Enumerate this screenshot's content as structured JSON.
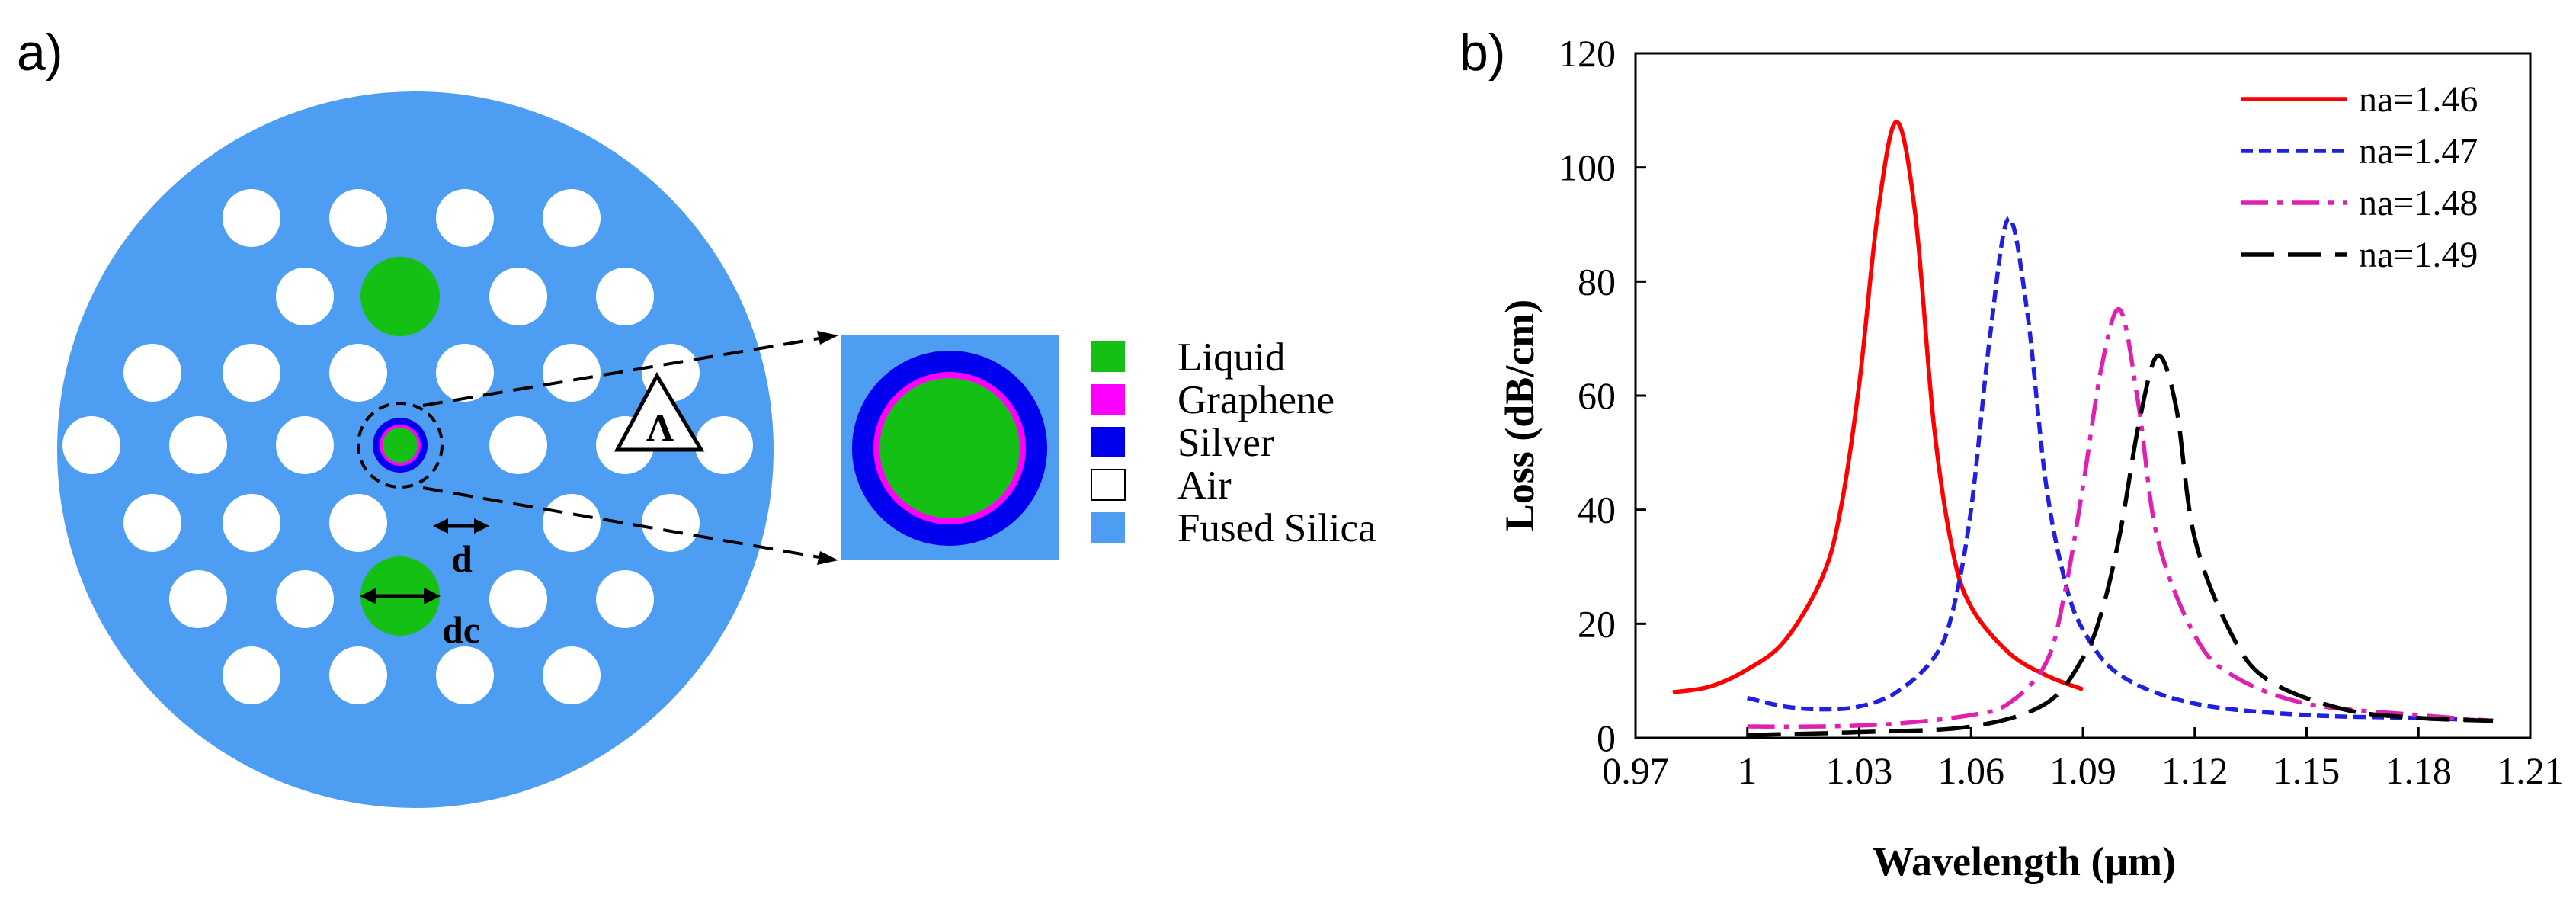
{
  "colors": {
    "fused_silica": "#4d9df2",
    "liquid": "#13c013",
    "graphene": "#ff00ff",
    "silver": "#0000ee",
    "air": "#ffffff"
  },
  "panel_a": {
    "label": "a)",
    "dim_d": "d",
    "dim_dc": "dc",
    "lambda": "Λ",
    "legend": [
      {
        "label": "Liquid",
        "color": "#13c013"
      },
      {
        "label": "Graphene",
        "color": "#ff00ff"
      },
      {
        "label": "Silver",
        "color": "#0000ee"
      },
      {
        "label": "Air",
        "color": "#ffffff"
      },
      {
        "label": "Fused Silica",
        "color": "#4d9df2"
      }
    ]
  },
  "panel_b": {
    "label": "b)"
  },
  "chart_data": {
    "type": "line",
    "title": "",
    "xlabel": "Wavelength (μm)",
    "ylabel": "Loss (dB/cm)",
    "xlim": [
      0.97,
      1.21
    ],
    "ylim": [
      0,
      120
    ],
    "xticks": [
      0.97,
      1,
      1.03,
      1.06,
      1.09,
      1.12,
      1.15,
      1.18,
      1.21
    ],
    "yticks": [
      0,
      20,
      40,
      60,
      80,
      100,
      120
    ],
    "legend_position": "top-right",
    "series": [
      {
        "name": "na=1.46",
        "color": "#ff0000",
        "dash": "solid",
        "x": [
          0.98,
          0.99,
          1.0,
          1.01,
          1.02,
          1.025,
          1.03,
          1.035,
          1.04,
          1.045,
          1.05,
          1.055,
          1.06,
          1.07,
          1.08,
          1.09
        ],
        "y": [
          8,
          9,
          12,
          17,
          28,
          40,
          62,
          92,
          108,
          92,
          55,
          33,
          23,
          15,
          11,
          8.5
        ]
      },
      {
        "name": "na=1.47",
        "color": "#2020e0",
        "dash": "short",
        "x": [
          1.0,
          1.01,
          1.02,
          1.03,
          1.04,
          1.05,
          1.055,
          1.06,
          1.065,
          1.07,
          1.075,
          1.08,
          1.085,
          1.09,
          1.1,
          1.12,
          1.15,
          1.18,
          1.2
        ],
        "y": [
          7,
          5.5,
          5,
          5.5,
          8,
          14,
          22,
          40,
          70,
          91,
          75,
          45,
          28,
          19,
          11,
          6,
          4,
          3.5,
          3
        ]
      },
      {
        "name": "na=1.48",
        "color": "#e020b0",
        "dash": "dashdot",
        "x": [
          1.0,
          1.02,
          1.04,
          1.06,
          1.07,
          1.08,
          1.085,
          1.09,
          1.095,
          1.1,
          1.105,
          1.11,
          1.12,
          1.13,
          1.15,
          1.18,
          1.2
        ],
        "y": [
          2,
          2,
          2.5,
          4,
          6,
          13,
          25,
          44,
          65,
          75,
          58,
          35,
          18,
          11,
          6,
          4,
          3
        ]
      },
      {
        "name": "na=1.49",
        "color": "#000000",
        "dash": "long",
        "x": [
          1.0,
          1.03,
          1.06,
          1.08,
          1.09,
          1.095,
          1.1,
          1.105,
          1.11,
          1.115,
          1.12,
          1.13,
          1.14,
          1.16,
          1.18,
          1.2
        ],
        "y": [
          0.5,
          1,
          2,
          6,
          14,
          22,
          36,
          55,
          67,
          58,
          35,
          18,
          10,
          5,
          3.5,
          3
        ]
      }
    ]
  }
}
